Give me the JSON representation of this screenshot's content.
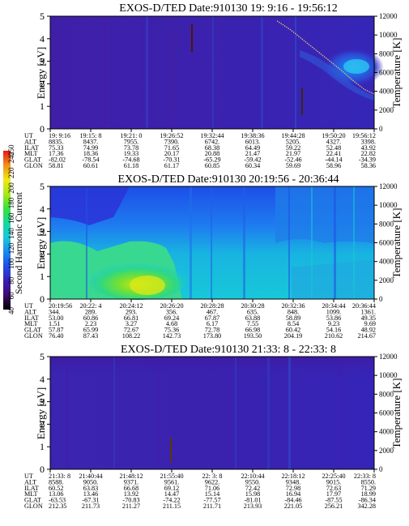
{
  "colorbar": {
    "ticks": [
      "40",
      "60",
      "80",
      "100",
      "120",
      "140",
      "160",
      "180",
      "200",
      "220",
      "240",
      "250"
    ],
    "label": "Second Harmonic Current",
    "vmin": 40,
    "vmax": 250,
    "colors": [
      "#000000",
      "#3d0a6e",
      "#3a1fb4",
      "#1f4fe6",
      "#1c8bf0",
      "#18c8d8",
      "#18d8a0",
      "#38e040",
      "#a8e818",
      "#f0e818",
      "#f09018",
      "#e81818"
    ]
  },
  "chart_data": [
    {
      "type": "heatmap",
      "title": "EXOS-D/TED   Date:910130  19: 9:16 - 19:56:12",
      "ylabel": "Energy [eV]",
      "y2label": "Temperature [K]",
      "yticks": [
        "0",
        "1",
        "2",
        "3",
        "4",
        "5"
      ],
      "ylim": [
        0,
        5
      ],
      "y2ticks": [
        "0",
        "2000",
        "4000",
        "6000",
        "8000",
        "10000",
        "12000"
      ],
      "y2lim": [
        0,
        12000
      ],
      "ephemeris": {
        "labels": [
          "UT",
          "ALT",
          "ILAT",
          "MLT",
          "GLAT",
          "GLON"
        ],
        "columns": [
          [
            "19: 9:16",
            "8835.",
            "75.33",
            "17.36",
            "-82.02",
            "58.81"
          ],
          [
            "19:15: 8",
            "8437.",
            "74.99",
            "18.36",
            "-78.54",
            "60.61"
          ],
          [
            "19:21: 0",
            "7955.",
            "73.78",
            "19.33",
            "-74.68",
            "61.18"
          ],
          [
            "19:26:52",
            "7390.",
            "71.65",
            "20.17",
            "-70.31",
            "61.17"
          ],
          [
            "19:32:44",
            "6742.",
            "68.38",
            "20.88",
            "-65.29",
            "60.85"
          ],
          [
            "19:38:36",
            "6013.",
            "64.49",
            "21.47",
            "-59.42",
            "60.34"
          ],
          [
            "19:44:28",
            "5205.",
            "59.22",
            "21.97",
            "-52.46",
            "59.69"
          ],
          [
            "19:50:20",
            "4327.",
            "52.48",
            "22.41",
            "-44.14",
            "58.96"
          ],
          [
            "19:56:12",
            "3398.",
            "43.92",
            "22.82",
            "-34.39",
            "58.36"
          ]
        ]
      },
      "temperature_trace": [
        [
          0.7,
          11500
        ],
        [
          0.74,
          10600
        ],
        [
          0.78,
          9500
        ],
        [
          0.82,
          8400
        ],
        [
          0.86,
          7300
        ],
        [
          0.9,
          6200
        ],
        [
          0.94,
          5000
        ],
        [
          0.97,
          4200
        ],
        [
          1.0,
          3700
        ]
      ]
    },
    {
      "type": "heatmap",
      "title": "EXOS-D/TED   Date:910130  20:19:56 - 20:36:44",
      "ylabel": "Energy [eV]",
      "y2label": "Temperature [K]",
      "yticks": [
        "0",
        "1",
        "2",
        "3",
        "4",
        "5"
      ],
      "ylim": [
        0,
        5
      ],
      "y2ticks": [
        "0",
        "2000",
        "4000",
        "6000",
        "8000",
        "10000",
        "12000"
      ],
      "y2lim": [
        0,
        12000
      ],
      "ephemeris": {
        "labels": [
          "UT",
          "ALT",
          "ILAT",
          "MLT",
          "GLAT",
          "GLON"
        ],
        "columns": [
          [
            "20:19:56",
            "344.",
            "53.00",
            "1.51",
            "57.87",
            "76.40"
          ],
          [
            "20:22: 4",
            "289.",
            "60.86",
            "2.23",
            "65.99",
            "87.43"
          ],
          [
            "20:24:12",
            "293.",
            "66.81",
            "3.27",
            "72.67",
            "108.22"
          ],
          [
            "20:26:20",
            "356.",
            "69.24",
            "4.68",
            "75.36",
            "142.73"
          ],
          [
            "20:28:28",
            "467.",
            "67.87",
            "6.17",
            "72.78",
            "173.80"
          ],
          [
            "20:30:28",
            "635.",
            "63.88",
            "7.55",
            "66.98",
            "193.50"
          ],
          [
            "20:32:36",
            "848.",
            "58.89",
            "8.54",
            "60.42",
            "204.19"
          ],
          [
            "20:34:44",
            "1099.",
            "53.86",
            "9.23",
            "54.16",
            "210.62"
          ],
          [
            "20:36:44",
            "1361.",
            "49.35",
            "9.69",
            "48.92",
            "214.67"
          ]
        ]
      }
    },
    {
      "type": "heatmap",
      "title": "EXOS-D/TED   Date:910130  21:33: 8 - 22:33: 8",
      "ylabel": "Energy [eV]",
      "y2label": "Temperature [K]",
      "yticks": [
        "0",
        "1",
        "2",
        "3",
        "4",
        "5"
      ],
      "ylim": [
        0,
        5
      ],
      "y2ticks": [
        "0",
        "2000",
        "4000",
        "6000",
        "8000",
        "10000",
        "12000"
      ],
      "y2lim": [
        0,
        12000
      ],
      "ephemeris": {
        "labels": [
          "UT",
          "ALT",
          "ILAT",
          "MLT",
          "GLAT",
          "GLON"
        ],
        "columns": [
          [
            "21:33: 8",
            "8588.",
            "60.52",
            "13.06",
            "-63.53",
            "212.35"
          ],
          [
            "21:40:44",
            "9050.",
            "63.83",
            "13.46",
            "-67.31",
            "211.73"
          ],
          [
            "21:48:12",
            "9371.",
            "66.68",
            "13.92",
            "-70.83",
            "211.27"
          ],
          [
            "21:55:40",
            "9561.",
            "69.12",
            "14.47",
            "-74.22",
            "211.15"
          ],
          [
            "22: 3: 8",
            "9622.",
            "71.06",
            "15.14",
            "-77.57",
            "211.71"
          ],
          [
            "22:10:44",
            "9550.",
            "72.42",
            "15.98",
            "-81.01",
            "213.93"
          ],
          [
            "22:18:12",
            "9348.",
            "72.98",
            "16.94",
            "-84.46",
            "221.05"
          ],
          [
            "22:25:40",
            "9015.",
            "72.63",
            "17.97",
            "-87.55",
            "256.21"
          ],
          [
            "22:33: 8",
            "8550.",
            "71.29",
            "18.99",
            "-86.34",
            "342.28"
          ]
        ]
      }
    }
  ]
}
